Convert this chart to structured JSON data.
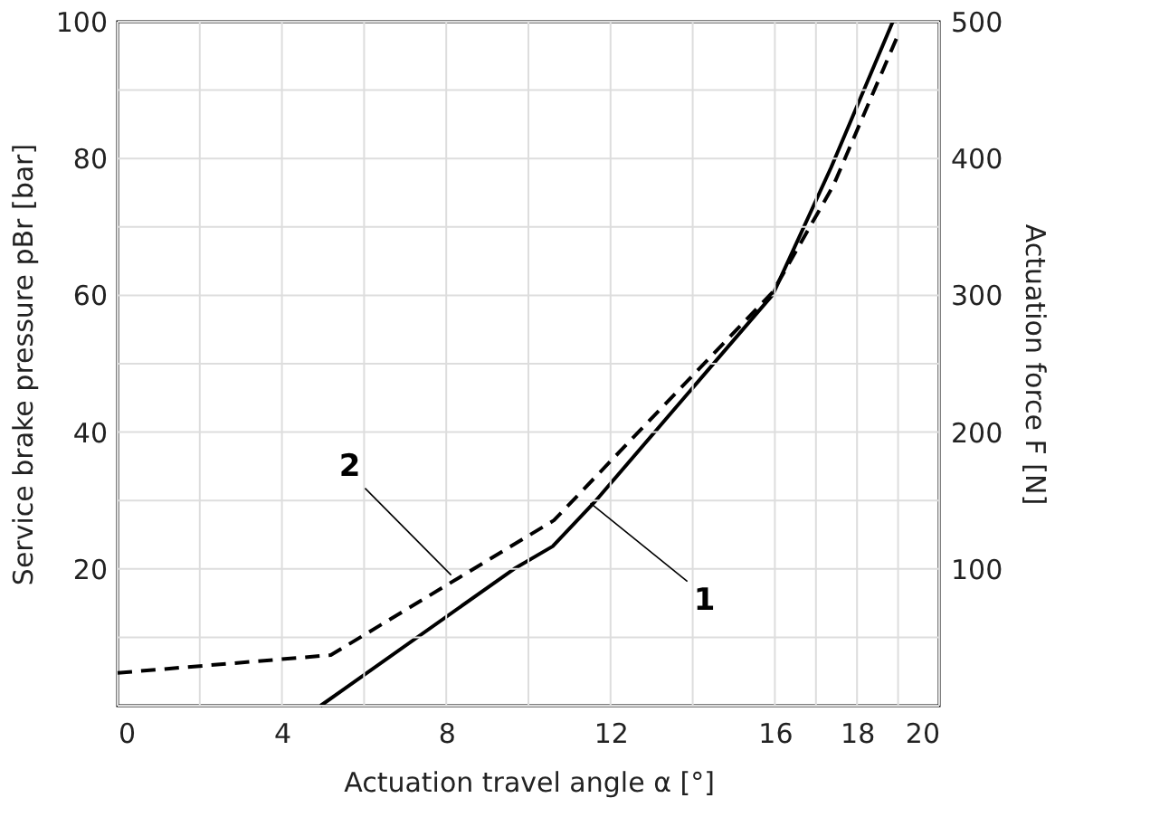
{
  "chart_data": {
    "type": "line",
    "xlabel": "Actuation travel angle α [°]",
    "ylabel": "Service brake pressure pBr [bar]",
    "y2label": "Actuation force F [N]",
    "xlim": [
      0,
      20
    ],
    "ylim": [
      0,
      100
    ],
    "y2lim": [
      0,
      500
    ],
    "xticks": [
      0,
      {
        "value": 2,
        "label": null
      },
      4,
      {
        "value": 6,
        "label": null
      },
      8,
      {
        "value": 10,
        "label": null
      },
      12,
      {
        "value": 14,
        "label": null
      },
      16,
      {
        "value": 17,
        "label": null
      },
      18,
      {
        "value": 19,
        "label": null
      },
      20
    ],
    "yticks": [
      {
        "value": 0,
        "label": null
      },
      {
        "value": 10,
        "label": null
      },
      20,
      {
        "value": 30,
        "label": null
      },
      40,
      {
        "value": 50,
        "label": null
      },
      60,
      {
        "value": 70,
        "label": null
      },
      80,
      {
        "value": 90,
        "label": null
      },
      100
    ],
    "y2ticks": [
      100,
      200,
      300,
      400,
      500
    ],
    "grid": true,
    "marker": "none",
    "series": [
      {
        "color": "#000000",
        "line_style": "solid",
        "x": [
          4.94,
          9.65,
          10.59,
          11.6,
          15.95,
          17.37,
          18.87
        ],
        "values": [
          0,
          20.0,
          23.3,
          29.7,
          60.1,
          78.7,
          100
        ]
      },
      {
        "color": "#000000",
        "line_style": "dashed",
        "x": [
          0,
          5.19,
          10.62,
          15.95,
          17.42,
          19.0
        ],
        "values": [
          4.8,
          7.4,
          27.1,
          60.5,
          76.0,
          98.1
        ]
      }
    ],
    "annotations": [
      {
        "text": "1",
        "x": 11.51,
        "y": 29.6
      },
      {
        "text": "2",
        "x": 8.12,
        "y": 19.1
      }
    ]
  }
}
